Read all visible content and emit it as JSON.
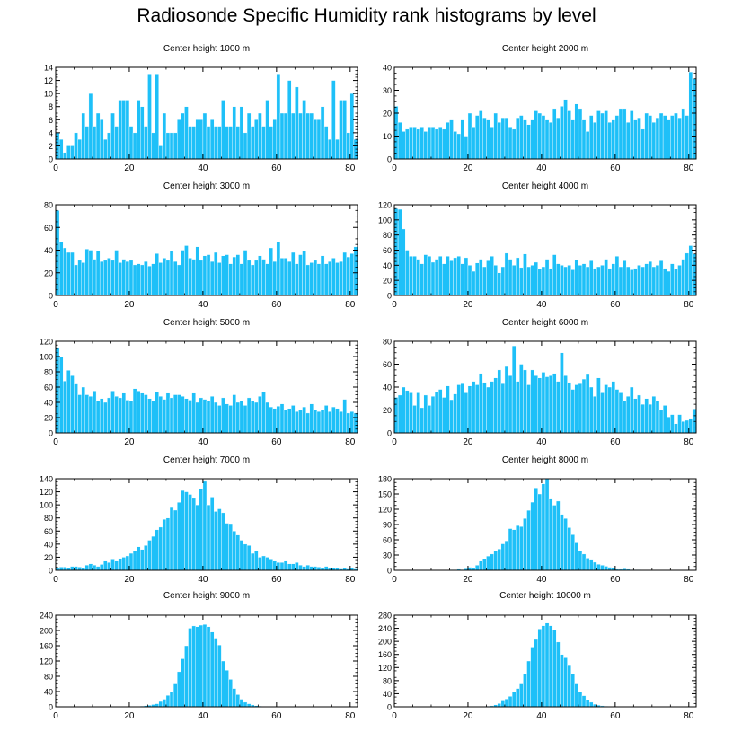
{
  "title": "Radiosonde Specific Humidity rank histograms by level",
  "colors": {
    "bar": "#1ec0f8",
    "bar_edge": "#ffffff",
    "axis": "#000000"
  },
  "chart_data": [
    {
      "type": "bar",
      "title": "Center height 1000 m",
      "xlim": [
        0,
        82
      ],
      "ylim": [
        0,
        14
      ],
      "xticks": [
        0,
        20,
        40,
        60,
        80
      ],
      "yticks": [
        0,
        2,
        4,
        6,
        8,
        10,
        12,
        14
      ],
      "x_start": 0,
      "values": [
        4,
        3,
        1,
        2,
        2,
        4,
        3,
        7,
        5,
        10,
        5,
        7,
        6,
        3,
        4,
        7,
        5,
        9,
        9,
        9,
        5,
        4,
        9,
        8,
        5,
        13,
        4,
        13,
        2,
        7,
        4,
        4,
        4,
        6,
        7,
        8,
        5,
        5,
        6,
        6,
        7,
        5,
        6,
        5,
        5,
        9,
        5,
        5,
        8,
        5,
        8,
        4,
        7,
        5,
        6,
        7,
        5,
        9,
        5,
        6,
        13,
        7,
        7,
        12,
        7,
        11,
        7,
        9,
        7,
        7,
        6,
        6,
        8,
        5,
        3,
        12,
        3,
        9,
        9,
        4,
        10,
        3
      ]
    },
    {
      "type": "bar",
      "title": "Center height 2000 m",
      "xlim": [
        0,
        82
      ],
      "ylim": [
        0,
        40
      ],
      "xticks": [
        0,
        20,
        40,
        60,
        80
      ],
      "yticks": [
        0,
        10,
        20,
        30,
        40
      ],
      "x_start": 0,
      "values": [
        23,
        16,
        12,
        13,
        14,
        14,
        13,
        14,
        12,
        14,
        14,
        13,
        14,
        13,
        16,
        17,
        12,
        11,
        17,
        10,
        20,
        14,
        19,
        21,
        18,
        17,
        14,
        20,
        16,
        18,
        18,
        14,
        13,
        18,
        19,
        17,
        15,
        17,
        21,
        20,
        19,
        17,
        16,
        22,
        18,
        23,
        26,
        21,
        17,
        24,
        22,
        17,
        12,
        19,
        16,
        21,
        20,
        21,
        16,
        17,
        19,
        22,
        22,
        16,
        21,
        17,
        18,
        13,
        20,
        19,
        16,
        18,
        20,
        19,
        17,
        19,
        20,
        18,
        22,
        19,
        38,
        35
      ]
    },
    {
      "type": "bar",
      "title": "Center height 3000 m",
      "xlim": [
        0,
        82
      ],
      "ylim": [
        0,
        80
      ],
      "xticks": [
        0,
        20,
        40,
        60,
        80
      ],
      "yticks": [
        0,
        20,
        40,
        60,
        80
      ],
      "x_start": 0,
      "values": [
        75,
        47,
        42,
        38,
        38,
        27,
        31,
        29,
        41,
        40,
        32,
        39,
        30,
        31,
        33,
        31,
        40,
        29,
        32,
        30,
        31,
        27,
        28,
        27,
        30,
        26,
        28,
        37,
        29,
        33,
        31,
        39,
        30,
        27,
        40,
        44,
        33,
        32,
        43,
        31,
        35,
        36,
        30,
        38,
        29,
        35,
        36,
        28,
        34,
        36,
        28,
        40,
        31,
        27,
        31,
        35,
        32,
        28,
        42,
        30,
        47,
        33,
        33,
        30,
        38,
        28,
        36,
        39,
        27,
        29,
        31,
        28,
        35,
        28,
        30,
        33,
        29,
        30,
        38,
        34,
        37,
        43
      ]
    },
    {
      "type": "bar",
      "title": "Center height 4000 m",
      "xlim": [
        0,
        82
      ],
      "ylim": [
        0,
        120
      ],
      "xticks": [
        0,
        20,
        40,
        60,
        80
      ],
      "yticks": [
        0,
        20,
        40,
        60,
        80,
        100,
        120
      ],
      "x_start": 0,
      "values": [
        115,
        114,
        88,
        60,
        52,
        52,
        48,
        42,
        54,
        52,
        44,
        48,
        52,
        42,
        52,
        46,
        50,
        52,
        42,
        50,
        40,
        32,
        43,
        48,
        38,
        46,
        52,
        40,
        30,
        38,
        56,
        48,
        40,
        50,
        37,
        55,
        38,
        40,
        44,
        35,
        38,
        48,
        36,
        54,
        42,
        40,
        38,
        40,
        34,
        47,
        40,
        42,
        38,
        46,
        36,
        38,
        40,
        48,
        36,
        42,
        52,
        38,
        46,
        38,
        34,
        36,
        40,
        38,
        42,
        45,
        38,
        40,
        46,
        36,
        32,
        42,
        35,
        40,
        48,
        56,
        66,
        55
      ]
    },
    {
      "type": "bar",
      "title": "Center height 5000 m",
      "xlim": [
        0,
        82
      ],
      "ylim": [
        0,
        120
      ],
      "xticks": [
        0,
        20,
        40,
        60,
        80
      ],
      "yticks": [
        0,
        20,
        40,
        60,
        80,
        100,
        120
      ],
      "x_start": 0,
      "values": [
        112,
        100,
        68,
        82,
        75,
        64,
        50,
        60,
        50,
        48,
        55,
        42,
        45,
        40,
        46,
        55,
        48,
        46,
        52,
        43,
        42,
        58,
        55,
        52,
        50,
        45,
        42,
        54,
        48,
        44,
        52,
        46,
        50,
        50,
        48,
        45,
        43,
        52,
        40,
        46,
        44,
        42,
        48,
        40,
        36,
        46,
        38,
        36,
        50,
        40,
        42,
        36,
        46,
        42,
        40,
        48,
        54,
        40,
        34,
        32,
        35,
        38,
        30,
        32,
        36,
        28,
        30,
        34,
        26,
        38,
        30,
        28,
        30,
        36,
        28,
        34,
        32,
        28,
        44,
        26,
        28,
        26
      ]
    },
    {
      "type": "bar",
      "title": "Center height 6000 m",
      "xlim": [
        0,
        82
      ],
      "ylim": [
        0,
        80
      ],
      "xticks": [
        0,
        20,
        40,
        60,
        80
      ],
      "yticks": [
        0,
        20,
        40,
        60,
        80
      ],
      "x_start": 0,
      "values": [
        31,
        33,
        40,
        37,
        35,
        24,
        35,
        22,
        33,
        24,
        32,
        36,
        38,
        31,
        41,
        29,
        34,
        42,
        43,
        35,
        41,
        45,
        42,
        52,
        44,
        40,
        45,
        48,
        55,
        43,
        58,
        50,
        76,
        45,
        60,
        55,
        42,
        55,
        50,
        48,
        53,
        49,
        50,
        52,
        45,
        70,
        50,
        44,
        38,
        42,
        43,
        47,
        51,
        40,
        32,
        48,
        35,
        42,
        40,
        45,
        38,
        35,
        28,
        32,
        40,
        30,
        33,
        25,
        30,
        25,
        32,
        28,
        20,
        24,
        14,
        16,
        8,
        16,
        10,
        11,
        12,
        21
      ]
    },
    {
      "type": "bar",
      "title": "Center height 7000 m",
      "xlim": [
        0,
        82
      ],
      "ylim": [
        0,
        140
      ],
      "xticks": [
        0,
        20,
        40,
        60,
        80
      ],
      "yticks": [
        0,
        20,
        40,
        60,
        80,
        100,
        120,
        140
      ],
      "x_start": 0,
      "values": [
        4,
        5,
        5,
        4,
        6,
        6,
        5,
        3,
        8,
        10,
        8,
        6,
        9,
        14,
        12,
        16,
        14,
        18,
        20,
        22,
        26,
        30,
        36,
        32,
        38,
        46,
        52,
        62,
        66,
        78,
        80,
        96,
        92,
        104,
        122,
        120,
        116,
        110,
        100,
        124,
        136,
        100,
        112,
        90,
        94,
        88,
        72,
        70,
        60,
        54,
        46,
        40,
        38,
        26,
        30,
        20,
        22,
        20,
        16,
        14,
        12,
        12,
        14,
        10,
        10,
        12,
        8,
        6,
        8,
        6,
        6,
        5,
        4,
        6,
        3,
        3,
        4,
        2,
        3,
        2,
        3,
        2
      ]
    },
    {
      "type": "bar",
      "title": "Center height 8000 m",
      "xlim": [
        0,
        82
      ],
      "ylim": [
        0,
        180
      ],
      "xticks": [
        0,
        20,
        40,
        60,
        80
      ],
      "yticks": [
        0,
        30,
        60,
        90,
        120,
        150,
        180
      ],
      "x_start": 0,
      "values": [
        0,
        0,
        0,
        0,
        0,
        0,
        0,
        0,
        0,
        0,
        0,
        0,
        0,
        0,
        0,
        1,
        1,
        2,
        1,
        3,
        6,
        5,
        10,
        18,
        22,
        28,
        32,
        38,
        42,
        52,
        58,
        82,
        80,
        88,
        86,
        102,
        118,
        134,
        162,
        150,
        170,
        180,
        140,
        128,
        136,
        110,
        102,
        84,
        70,
        54,
        38,
        32,
        24,
        20,
        16,
        12,
        10,
        8,
        6,
        4,
        2,
        2,
        3,
        2,
        1,
        1,
        1,
        0,
        0,
        0,
        0,
        0,
        0,
        0,
        0,
        0,
        0,
        0,
        0,
        0,
        0,
        0
      ]
    },
    {
      "type": "bar",
      "title": "Center height 9000 m",
      "xlim": [
        0,
        82
      ],
      "ylim": [
        0,
        240
      ],
      "xticks": [
        0,
        20,
        40,
        60,
        80
      ],
      "yticks": [
        0,
        40,
        80,
        120,
        160,
        200,
        240
      ],
      "x_start": 0,
      "values": [
        0,
        0,
        0,
        0,
        0,
        0,
        0,
        0,
        0,
        0,
        0,
        0,
        0,
        0,
        0,
        0,
        0,
        0,
        0,
        0,
        0,
        0,
        1,
        2,
        3,
        4,
        6,
        8,
        14,
        20,
        30,
        40,
        60,
        92,
        126,
        160,
        206,
        212,
        210,
        214,
        216,
        210,
        196,
        180,
        162,
        120,
        96,
        72,
        48,
        32,
        20,
        12,
        8,
        5,
        3,
        2,
        1,
        1,
        0,
        0,
        0,
        0,
        0,
        0,
        0,
        0,
        0,
        0,
        0,
        0,
        0,
        0,
        0,
        0,
        0,
        0,
        0,
        0,
        0,
        0,
        0,
        0
      ]
    },
    {
      "type": "bar",
      "title": "Center height 10000 m",
      "xlim": [
        0,
        82
      ],
      "ylim": [
        0,
        280
      ],
      "xticks": [
        0,
        20,
        40,
        60,
        80
      ],
      "yticks": [
        0,
        40,
        80,
        120,
        160,
        200,
        240,
        280
      ],
      "x_start": 0,
      "values": [
        0,
        0,
        0,
        0,
        0,
        0,
        0,
        0,
        0,
        0,
        0,
        0,
        0,
        0,
        0,
        0,
        0,
        0,
        0,
        0,
        0,
        0,
        0,
        0,
        1,
        2,
        3,
        6,
        10,
        18,
        24,
        32,
        46,
        56,
        70,
        100,
        140,
        180,
        206,
        238,
        248,
        256,
        248,
        236,
        198,
        160,
        150,
        126,
        100,
        70,
        46,
        34,
        20,
        14,
        8,
        5,
        3,
        2,
        1,
        1,
        0,
        0,
        0,
        0,
        0,
        0,
        0,
        0,
        0,
        0,
        0,
        0,
        0,
        0,
        0,
        0,
        0,
        0,
        0,
        0,
        0,
        0
      ]
    }
  ]
}
